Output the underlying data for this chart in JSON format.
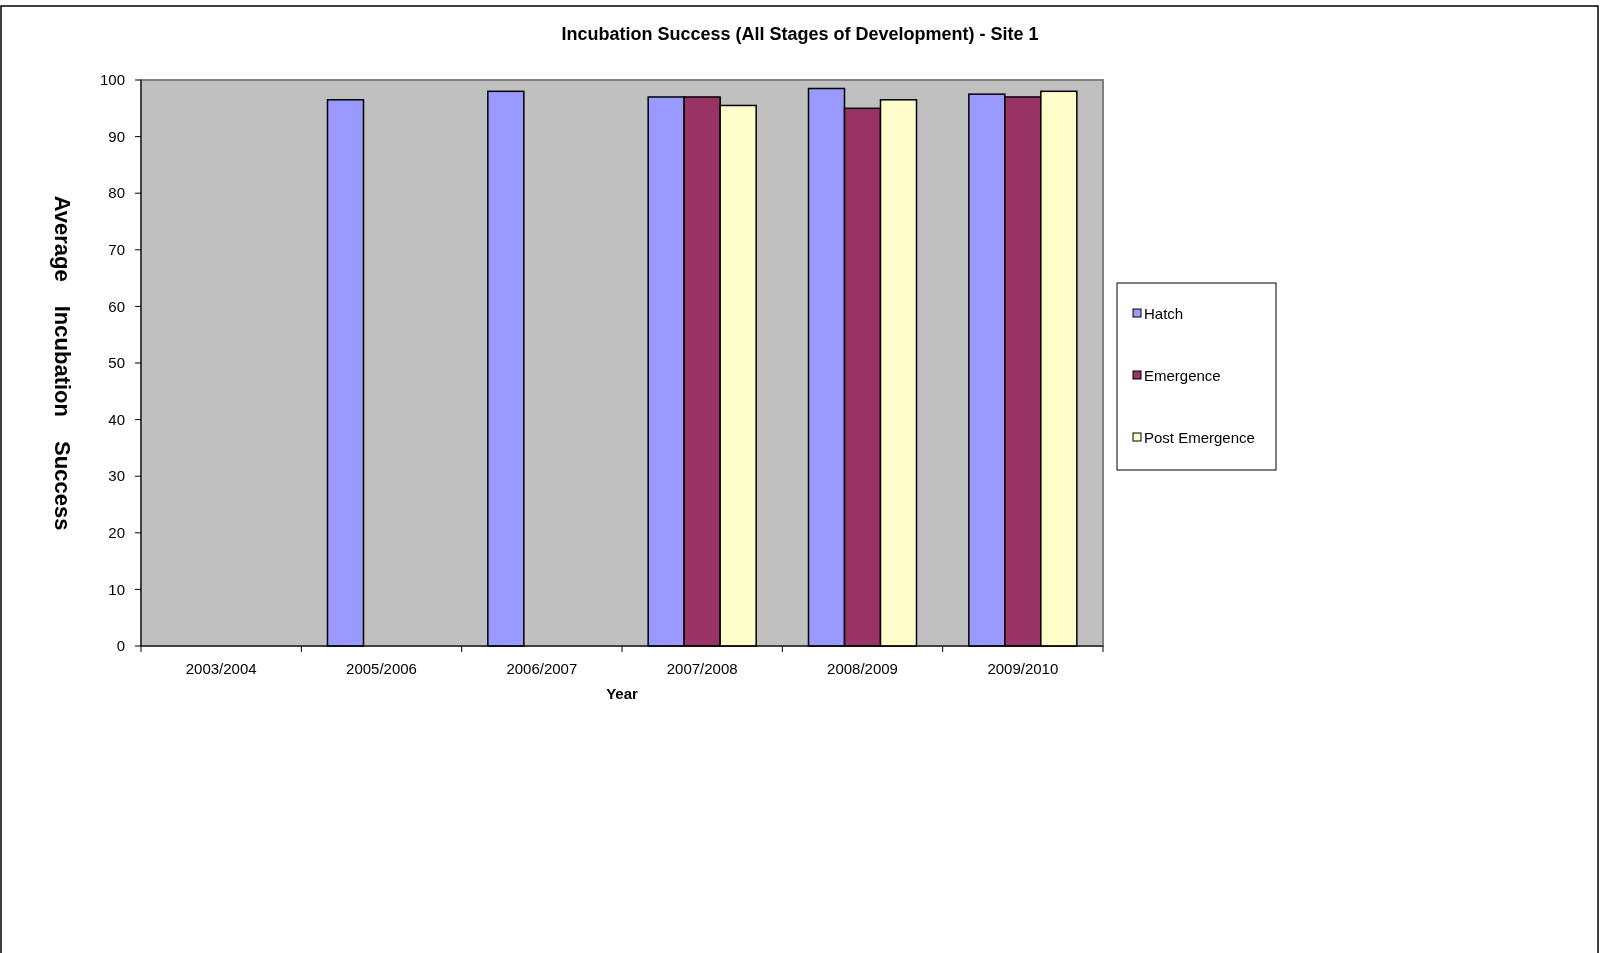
{
  "chart_data": {
    "type": "bar",
    "title": "Incubation Success (All Stages of Development) - Site 1",
    "xlabel": "Year",
    "ylabel": "Average Incubation Success",
    "categories": [
      "2003/2004",
      "2005/2006",
      "2006/2007",
      "2007/2008",
      "2008/2009",
      "2009/2010"
    ],
    "series": [
      {
        "name": "Hatch",
        "color": "#9999ff",
        "values": [
          null,
          96.5,
          98,
          97,
          98.5,
          97.5
        ]
      },
      {
        "name": "Emergence",
        "color": "#993366",
        "values": [
          null,
          null,
          null,
          97,
          95,
          97
        ]
      },
      {
        "name": "Post Emergence",
        "color": "#ffffcc",
        "values": [
          null,
          null,
          null,
          95.5,
          96.5,
          98
        ]
      }
    ],
    "ylim": [
      0,
      100
    ],
    "yticks": [
      0,
      10,
      20,
      30,
      40,
      50,
      60,
      70,
      80,
      90,
      100
    ],
    "grid": false,
    "legend": "right"
  }
}
